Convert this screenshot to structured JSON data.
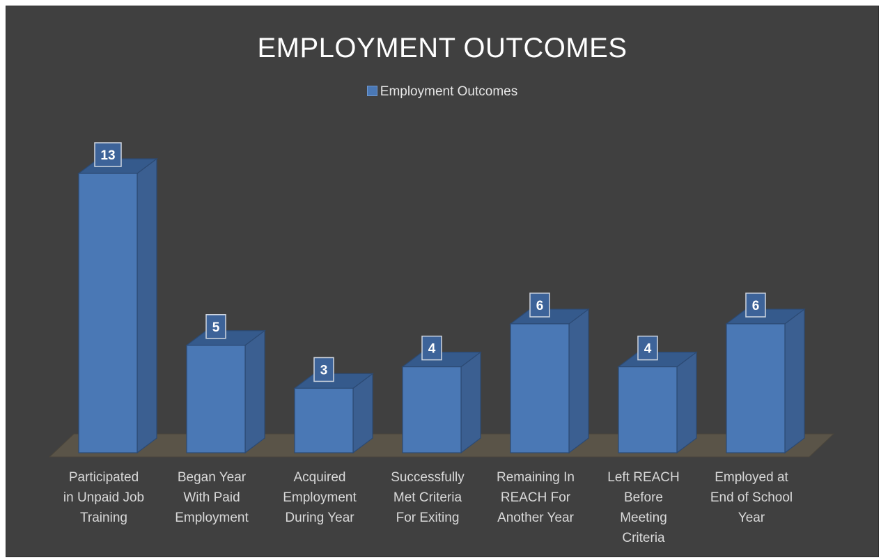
{
  "chart_data": {
    "type": "bar",
    "title": "EMPLOYMENT OUTCOMES",
    "legend": {
      "position": "top",
      "entries": [
        "Employment Outcomes"
      ]
    },
    "categories": [
      "Participated in Unpaid Job Training",
      "Began Year With Paid Employment",
      "Acquired Employment During Year",
      "Successfully Met Criteria For Exiting",
      "Remaining In REACH For Another Year",
      "Left REACH Before Meeting Criteria",
      "Employed at End of School Year"
    ],
    "category_lines": [
      [
        "Participated",
        "in Unpaid Job",
        "Training"
      ],
      [
        "Began Year",
        "With Paid",
        "Employment"
      ],
      [
        "Acquired",
        "Employment",
        "During Year"
      ],
      [
        "Successfully",
        "Met Criteria",
        "For Exiting"
      ],
      [
        "Remaining In",
        "REACH For",
        "Another Year"
      ],
      [
        "Left REACH",
        "Before",
        "Meeting",
        "Criteria"
      ],
      [
        "Employed at",
        "End of School",
        "Year"
      ]
    ],
    "series": [
      {
        "name": "Employment Outcomes",
        "values": [
          13,
          5,
          3,
          4,
          6,
          4,
          6
        ]
      }
    ],
    "data_labels": [
      "13",
      "5",
      "3",
      "4",
      "6",
      "4",
      "6"
    ],
    "ylim": [
      0,
      13
    ],
    "grid": false,
    "style": "3d-column",
    "colors": {
      "background": "#404040",
      "bar_front": "#4a78b5",
      "bar_side": "#3b5f91",
      "bar_top": "#355a8c",
      "floor": "#5a5448",
      "text": "#d9d9d9"
    }
  }
}
